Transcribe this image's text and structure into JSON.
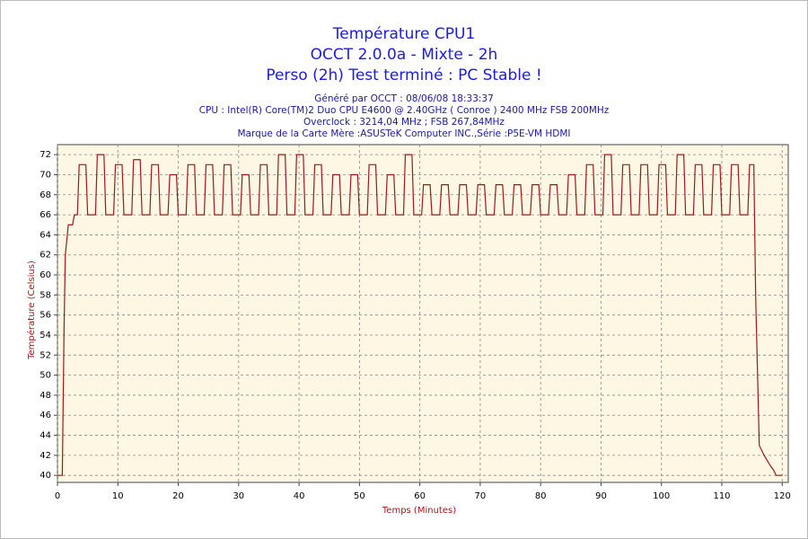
{
  "chart_data": {
    "type": "line",
    "title": [
      "Température CPU1",
      "OCCT 2.0.0a - Mixte - 2h",
      "Perso (2h) Test terminé : PC Stable !"
    ],
    "subtitle": [
      "Généré par OCCT : 08/06/08 18:33:37",
      "CPU : Intel(R) Core(TM)2 Duo CPU E4600 @ 2.40GHz ( Conroe ) 2400 MHz FSB 200MHz",
      "Overclock : 3214,04 MHz ; FSB 267,84MHz",
      "Marque de la Carte Mère :ASUSTeK Computer INC.,Série :P5E-VM HDMI"
    ],
    "xlabel": "Temps (Minutes)",
    "ylabel": "Température (Celsius)",
    "xlim": [
      0,
      121
    ],
    "ylim": [
      39.3,
      73
    ],
    "xticks": [
      0,
      10,
      20,
      30,
      40,
      50,
      60,
      70,
      80,
      90,
      100,
      110,
      120
    ],
    "yticks": [
      40,
      42,
      44,
      46,
      48,
      50,
      52,
      54,
      56,
      58,
      60,
      62,
      64,
      66,
      68,
      70,
      72
    ],
    "grid": true,
    "x": [
      0,
      0.8,
      1.1,
      1.3,
      1.8,
      2.5,
      2.8,
      3.3,
      3.6,
      4.7,
      5.0,
      6.3,
      6.6,
      7.7,
      8.0,
      9.3,
      9.6,
      10.7,
      11.0,
      12.3,
      12.6,
      13.7,
      14.0,
      15.3,
      15.6,
      16.7,
      17.0,
      18.3,
      18.6,
      19.7,
      20.0,
      21.3,
      21.6,
      22.7,
      23.0,
      24.3,
      24.6,
      25.7,
      26.0,
      27.3,
      27.6,
      28.7,
      29.0,
      30.3,
      30.6,
      31.7,
      32.0,
      33.3,
      33.6,
      34.7,
      35.0,
      36.3,
      36.6,
      37.7,
      38.0,
      39.3,
      39.6,
      40.7,
      41.0,
      42.3,
      42.6,
      43.7,
      44.0,
      45.3,
      45.6,
      46.7,
      47.0,
      48.3,
      48.6,
      49.7,
      50.0,
      51.3,
      51.6,
      52.7,
      53.0,
      54.3,
      54.6,
      55.7,
      56.0,
      57.3,
      57.6,
      58.7,
      59.0,
      60.3,
      60.6,
      61.7,
      62.0,
      63.3,
      63.6,
      64.7,
      65.0,
      66.3,
      66.6,
      67.7,
      68.0,
      69.3,
      69.6,
      70.7,
      71.0,
      72.3,
      72.6,
      73.7,
      74.0,
      75.3,
      75.6,
      76.7,
      77.0,
      78.3,
      78.6,
      79.7,
      80.0,
      81.3,
      81.6,
      82.7,
      83.0,
      84.3,
      84.6,
      85.7,
      86.0,
      87.3,
      87.6,
      88.7,
      89.0,
      90.3,
      90.6,
      91.7,
      92.0,
      93.3,
      93.6,
      94.7,
      95.0,
      96.3,
      96.6,
      97.7,
      98.0,
      99.3,
      99.6,
      100.7,
      101.0,
      102.3,
      102.6,
      103.7,
      104.0,
      105.3,
      105.6,
      106.7,
      107.0,
      108.3,
      108.6,
      109.7,
      110.0,
      111.3,
      111.6,
      112.7,
      113.0,
      114.3,
      114.6,
      115.3,
      115.6,
      116.2,
      117,
      118,
      118.6,
      119,
      120
    ],
    "series": [
      {
        "name": "Température CPU1",
        "color": "#a01818",
        "values": [
          40,
          40,
          55,
          62,
          65,
          65,
          66,
          66,
          71,
          71,
          66,
          66,
          72,
          72,
          66,
          66,
          71,
          71,
          66,
          66,
          71.5,
          71.5,
          66,
          66,
          71,
          71,
          66,
          66,
          70,
          70,
          66,
          66,
          71,
          71,
          66,
          66,
          71,
          71,
          66,
          66,
          71,
          71,
          66,
          66,
          70,
          70,
          66,
          66,
          71,
          71,
          66,
          66,
          72,
          72,
          66,
          66,
          72,
          72,
          66,
          66,
          71,
          71,
          66,
          66,
          70,
          70,
          66,
          66,
          70,
          70,
          66,
          66,
          71,
          71,
          66,
          66,
          70,
          70,
          66,
          66,
          72,
          72,
          66,
          66,
          69,
          69,
          66,
          66,
          69,
          69,
          66,
          66,
          69,
          69,
          66,
          66,
          69,
          69,
          66,
          66,
          69,
          69,
          66,
          66,
          69,
          69,
          66,
          66,
          69,
          69,
          66,
          66,
          69,
          69,
          66,
          66,
          70,
          70,
          66,
          66,
          71,
          71,
          66,
          66,
          72,
          72,
          66,
          66,
          71,
          71,
          66,
          66,
          71,
          71,
          66,
          66,
          71,
          71,
          66,
          66,
          72,
          72,
          66,
          66,
          71,
          71,
          66,
          66,
          71,
          71,
          66,
          66,
          71,
          71,
          66,
          66,
          71,
          71,
          58,
          43,
          42,
          41,
          40.5,
          40,
          40
        ]
      }
    ]
  }
}
